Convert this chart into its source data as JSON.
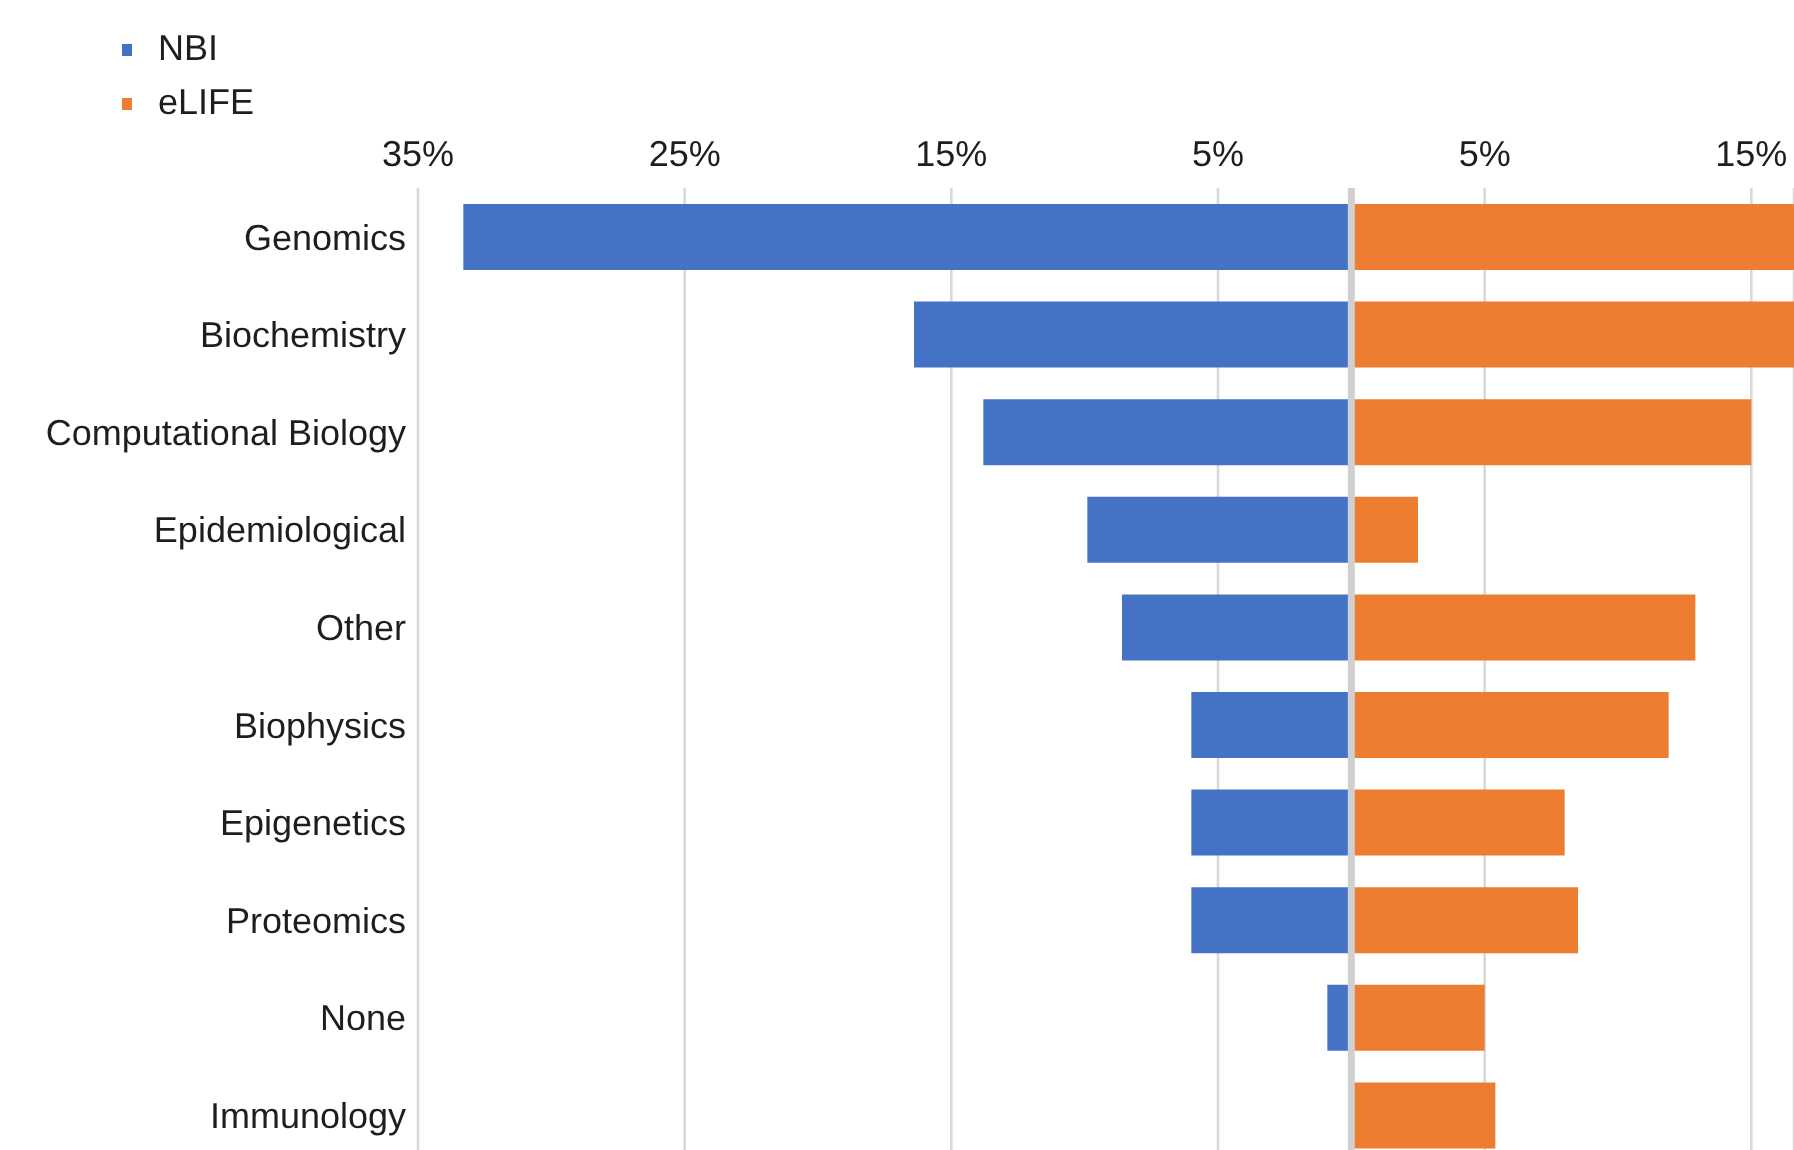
{
  "chart_data": {
    "type": "bar",
    "orientation": "horizontal",
    "stacked": true,
    "categories": [
      "Genomics",
      "Biochemistry",
      "Computational Biology",
      "Epidemiological",
      "Other",
      "Biophysics",
      "Epigenetics",
      "Proteomics",
      "None",
      "Immunology"
    ],
    "series": [
      {
        "name": "NBI",
        "color": "#4472c4",
        "values": [
          -33.3,
          -16.4,
          -13.8,
          -9.9,
          -8.6,
          -6.0,
          -6.0,
          -6.0,
          -0.9,
          0
        ]
      },
      {
        "name": "eLIFE",
        "color": "#ed7d31",
        "values": [
          16.6,
          16.6,
          15.0,
          2.5,
          12.9,
          11.9,
          8.0,
          8.5,
          5.0,
          5.4
        ]
      }
    ],
    "xlim": [
      -35,
      16.6
    ],
    "xticks": [
      {
        "value": -35,
        "label": "35%"
      },
      {
        "value": -25,
        "label": "25%"
      },
      {
        "value": -15,
        "label": "15%"
      },
      {
        "value": -5,
        "label": "5%"
      },
      {
        "value": 5,
        "label": "5%"
      },
      {
        "value": 15,
        "label": "15%"
      }
    ],
    "grid": "x",
    "legend": "top left",
    "ref_lines": [
      {
        "axis": "x",
        "value": 0,
        "color": "#d0d0d0"
      }
    ]
  }
}
